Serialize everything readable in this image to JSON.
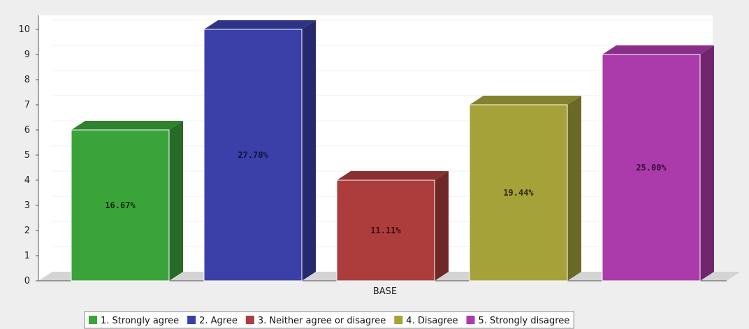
{
  "chart_data": {
    "type": "bar",
    "xlabel": "BASE",
    "ylabel": "",
    "ylim": [
      0,
      10
    ],
    "yticks": [
      0,
      1,
      2,
      3,
      4,
      5,
      6,
      7,
      8,
      9,
      10
    ],
    "grid": true,
    "legend_position": "bottom",
    "series": [
      {
        "name": "1. Strongly agree",
        "value": 6,
        "label": "16.67%",
        "color": "#3aa43a",
        "label_color": "#0a2a0a"
      },
      {
        "name": "2. Agree",
        "value": 10,
        "label": "27.78%",
        "color": "#3a40a8",
        "label_color": "#11143a"
      },
      {
        "name": "3. Neither agree or disagree",
        "value": 4,
        "label": "11.11%",
        "color": "#ad3c3c",
        "label_color": "#3a0c0c"
      },
      {
        "name": "4. Disagree",
        "value": 7,
        "label": "19.44%",
        "color": "#a5a23a",
        "label_color": "#2e2c06"
      },
      {
        "name": "5. Strongly disagree",
        "value": 9,
        "label": "25.00%",
        "color": "#ab3bab",
        "label_color": "#350c35"
      }
    ]
  }
}
